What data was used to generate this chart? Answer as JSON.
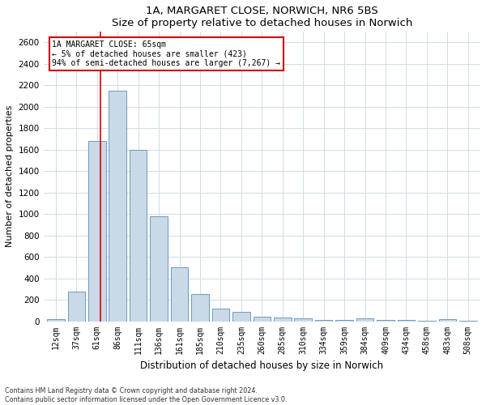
{
  "title": "1A, MARGARET CLOSE, NORWICH, NR6 5BS",
  "subtitle": "Size of property relative to detached houses in Norwich",
  "xlabel": "Distribution of detached houses by size in Norwich",
  "ylabel": "Number of detached properties",
  "bar_labels": [
    "12sqm",
    "37sqm",
    "61sqm",
    "86sqm",
    "111sqm",
    "136sqm",
    "161sqm",
    "185sqm",
    "210sqm",
    "235sqm",
    "260sqm",
    "285sqm",
    "310sqm",
    "334sqm",
    "359sqm",
    "384sqm",
    "409sqm",
    "434sqm",
    "458sqm",
    "483sqm",
    "508sqm"
  ],
  "bar_values": [
    20,
    280,
    1680,
    2150,
    1600,
    975,
    500,
    250,
    120,
    90,
    40,
    35,
    25,
    15,
    10,
    25,
    10,
    10,
    5,
    20,
    5
  ],
  "bar_color": "#c9d9e8",
  "bar_edge_color": "#5a8db5",
  "ylim": [
    0,
    2700
  ],
  "yticks": [
    0,
    200,
    400,
    600,
    800,
    1000,
    1200,
    1400,
    1600,
    1800,
    2000,
    2200,
    2400,
    2600
  ],
  "annotation_line1": "1A MARGARET CLOSE: 65sqm",
  "annotation_line2": "← 5% of detached houses are smaller (423)",
  "annotation_line3": "94% of semi-detached houses are larger (7,267) →",
  "footnote1": "Contains HM Land Registry data © Crown copyright and database right 2024.",
  "footnote2": "Contains public sector information licensed under the Open Government Licence v3.0.",
  "grid_color": "#d0dce8",
  "red_line_color": "#dd0000",
  "ann_box_edge_color": "#cc0000"
}
